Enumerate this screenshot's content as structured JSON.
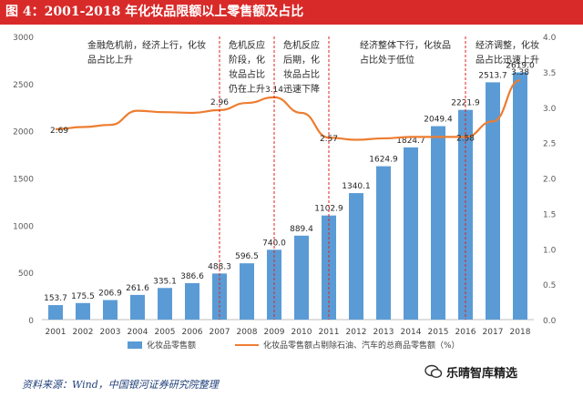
{
  "title": "图 4：2001-2018 年化妆品限额以上零售额及占比",
  "source": "资料来源：Wind，中国银河证券研究院整理",
  "watermark": "乐晴智库精选",
  "colors": {
    "bar": "#5b9bd5",
    "line": "#ed7d31",
    "divider": "#e02020",
    "title_bg": "#d92a2a"
  },
  "chart_data": {
    "type": "bar",
    "categories": [
      "2001",
      "2002",
      "2003",
      "2004",
      "2005",
      "2006",
      "2007",
      "2008",
      "2009",
      "2010",
      "2011",
      "2012",
      "2013",
      "2014",
      "2015",
      "2016",
      "2017",
      "2018"
    ],
    "series": [
      {
        "name": "化妆品零售额",
        "type": "bar",
        "axis": "left",
        "values": [
          153.7,
          175.5,
          206.9,
          261.6,
          335.1,
          386.6,
          488.3,
          596.5,
          740.0,
          889.4,
          1102.9,
          1340.1,
          1624.9,
          1824.7,
          2049.4,
          2221.9,
          2513.7,
          2619.0
        ]
      },
      {
        "name": "化妆品零售额占剔除石油、汽车的总商品零售额（%）",
        "type": "line",
        "axis": "right",
        "values": [
          2.69,
          2.72,
          2.75,
          2.95,
          2.93,
          2.92,
          2.96,
          3.06,
          3.14,
          2.92,
          2.57,
          2.54,
          2.56,
          2.58,
          2.58,
          2.58,
          2.8,
          3.38
        ]
      }
    ],
    "data_labels": {
      "bar": [
        "153.7",
        "175.5",
        "206.9",
        "261.6",
        "335.1",
        "386.6",
        "488.3",
        "596.5",
        "740.0",
        "889.4",
        "1102.9",
        "1340.1",
        "1624.9",
        "1824.7",
        "2049.4",
        "2221.9",
        "2513.7",
        "2619.0"
      ],
      "line": [
        {
          "index": 0,
          "text": "2.69"
        },
        {
          "index": 6,
          "text": "2.96"
        },
        {
          "index": 8,
          "text": "3.14"
        },
        {
          "index": 10,
          "text": "2.57"
        },
        {
          "index": 15,
          "text": "2.58"
        },
        {
          "index": 17,
          "text": "3.38"
        }
      ]
    },
    "left_axis": {
      "min": 0,
      "max": 3000,
      "ticks": [
        "0",
        "500",
        "1000",
        "1500",
        "2000",
        "2500",
        "3000"
      ]
    },
    "right_axis": {
      "min": 0,
      "max": 4.0,
      "ticks": [
        "0.0",
        "0.5",
        "1.0",
        "1.5",
        "2.0",
        "2.5",
        "3.0",
        "3.5",
        "4.0"
      ]
    },
    "dividers_after_years": [
      "2007",
      "2009",
      "2011",
      "2016"
    ],
    "annotations": [
      {
        "text": "金融危机前，经济上行，化妆品占比上升",
        "lines": [
          "金融危机前，经济上行，化妆",
          "品占比上升"
        ]
      },
      {
        "text": "危机反应阶段，化妆品占比仍在上升",
        "lines": [
          "危机反应",
          "阶段，化",
          "妆品占比",
          "仍在上升"
        ]
      },
      {
        "text": "危机反应后期，化妆品占比迅速下降",
        "lines": [
          "危机反应",
          "后期，化",
          "妆品占比",
          "迅速下降"
        ]
      },
      {
        "text": "经济整体下行，化妆品占比处于低位",
        "lines": [
          "经济整体下行，化妆品",
          "占比处于低位"
        ]
      },
      {
        "text": "经济调整，化妆品占比迅速上升",
        "lines": [
          "经济调整，化妆",
          "品占比迅速上升"
        ]
      }
    ],
    "legend": {
      "position": "bottom",
      "items": [
        "化妆品零售额",
        "化妆品零售额占剔除石油、汽车的总商品零售额（%）"
      ]
    },
    "grid": false
  }
}
